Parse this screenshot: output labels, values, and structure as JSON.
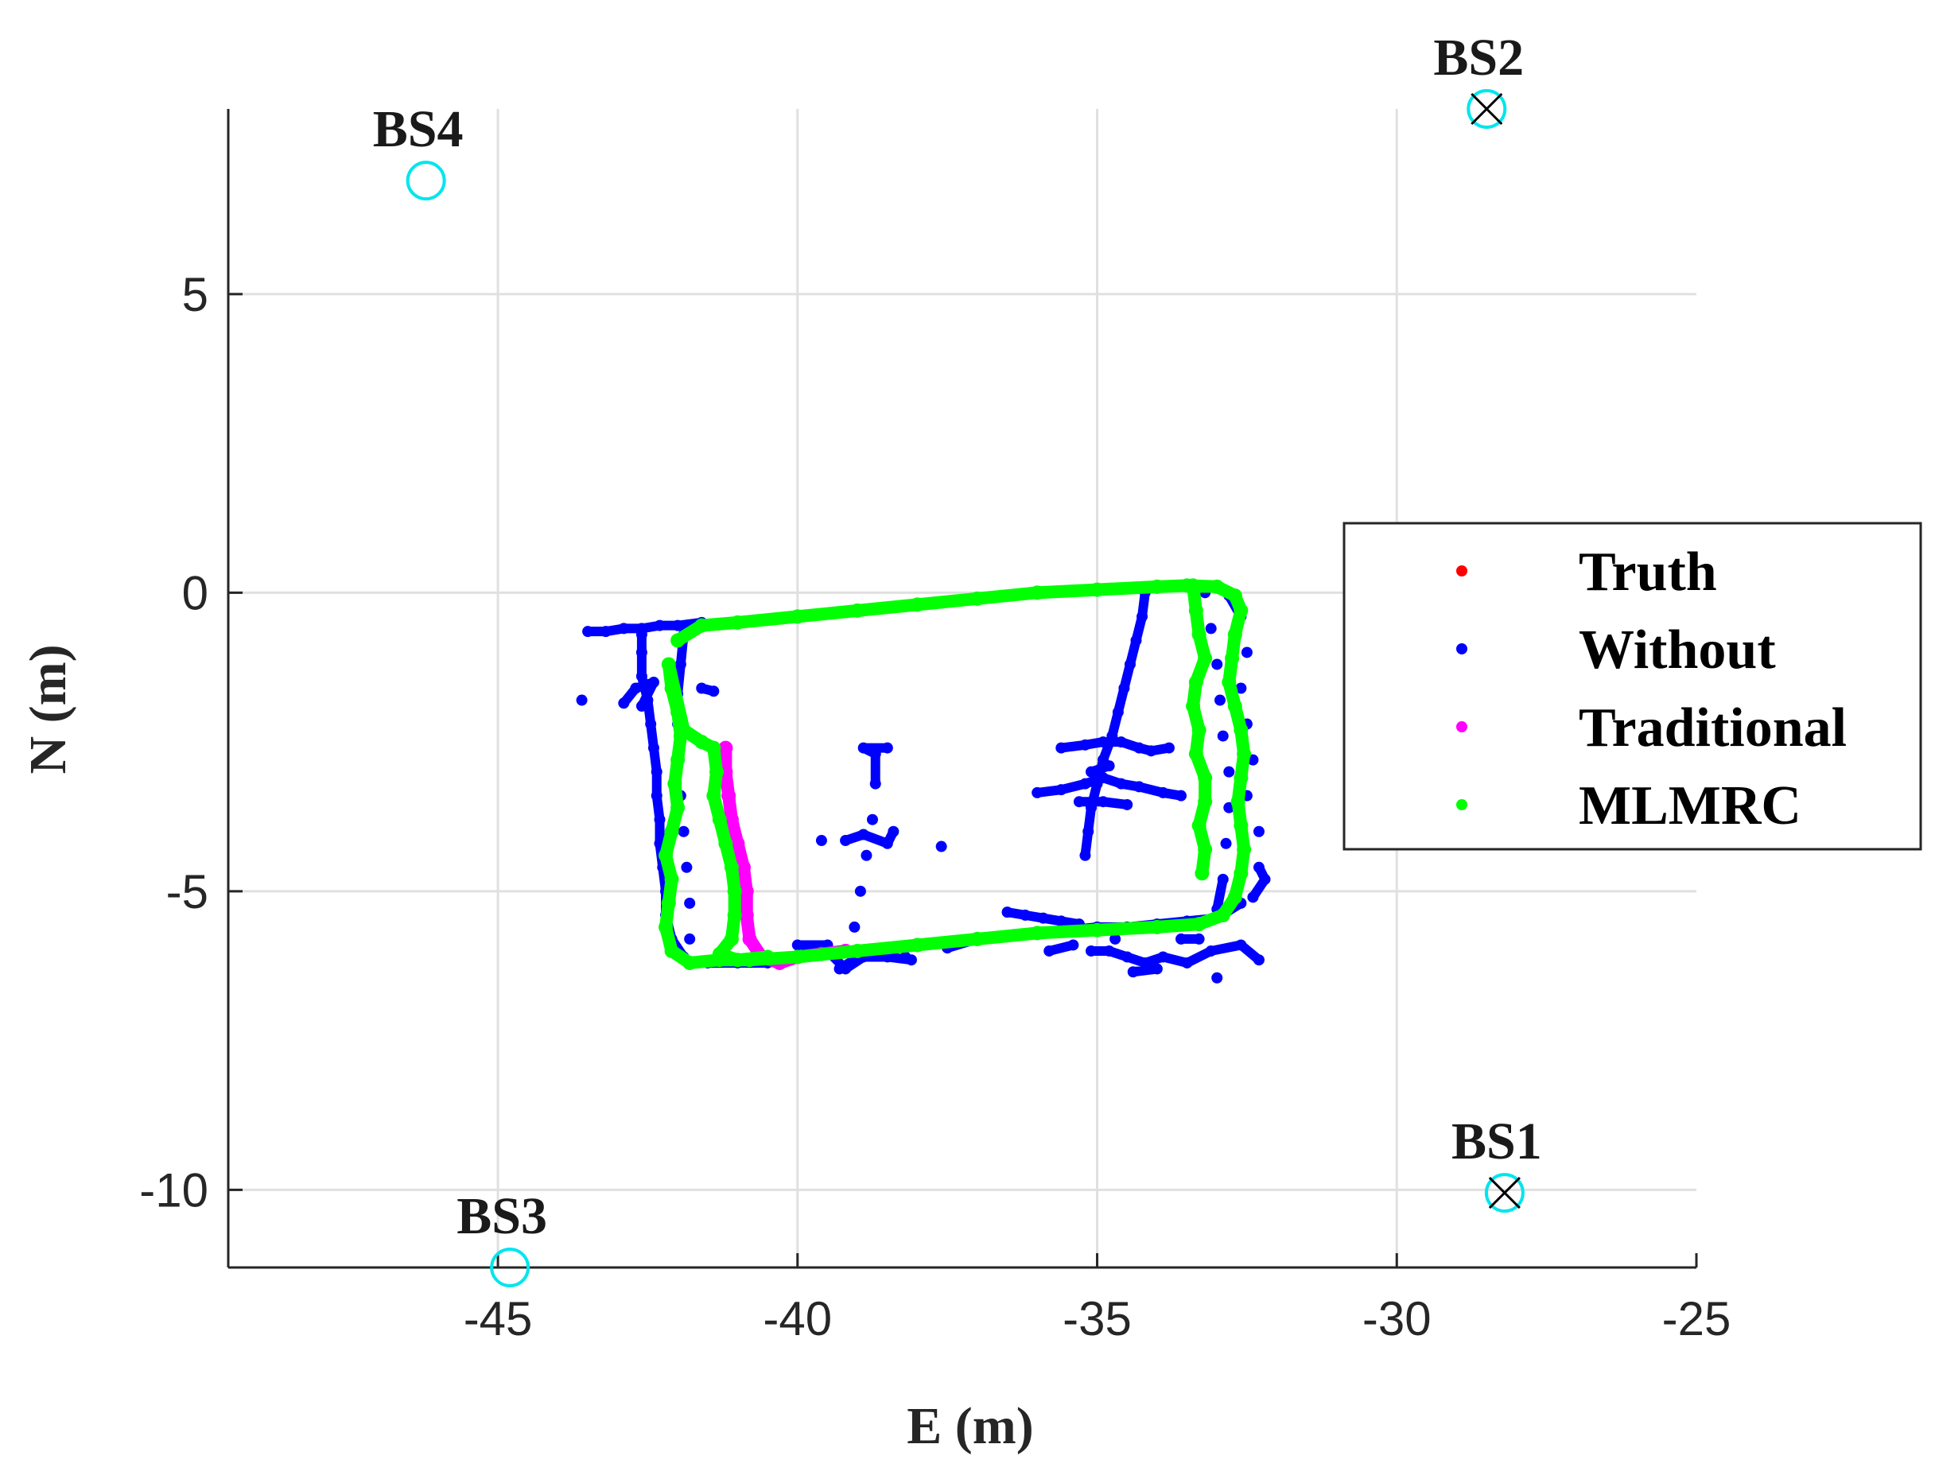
{
  "chart_data": {
    "type": "scatter",
    "xlabel": "E (m)",
    "ylabel": "N (m)",
    "xlim": [
      -49.5,
      -25
    ],
    "ylim": [
      -11.3,
      8.1
    ],
    "xticks": [
      -45,
      -40,
      -35,
      -30,
      -25
    ],
    "xtick_labels": [
      "-45",
      "-40",
      "-35",
      "-30",
      "-25"
    ],
    "yticks": [
      -10,
      -5,
      0,
      5
    ],
    "ytick_labels": [
      "-10",
      "-5",
      "0",
      "5"
    ],
    "grid": true,
    "legend_position": "right",
    "series": [
      {
        "name": "Truth",
        "color": "#ff0000",
        "points": []
      },
      {
        "name": "Without",
        "color": "#0000ff",
        "points": [
          [
            -43.5,
            -0.65
          ],
          [
            -43.2,
            -0.65
          ],
          [
            -42.9,
            -0.6
          ],
          [
            -42.6,
            -0.6
          ],
          [
            -42.3,
            -0.55
          ],
          [
            -42.0,
            -0.55
          ],
          [
            -41.6,
            -0.5
          ],
          [
            -42.6,
            -0.7
          ],
          [
            -42.6,
            -1.0
          ],
          [
            -42.6,
            -1.4
          ],
          [
            -42.5,
            -1.8
          ],
          [
            -42.45,
            -2.2
          ],
          [
            -42.4,
            -2.6
          ],
          [
            -42.35,
            -3.0
          ],
          [
            -42.35,
            -3.4
          ],
          [
            -42.3,
            -3.8
          ],
          [
            -42.3,
            -4.2
          ],
          [
            -42.25,
            -4.6
          ],
          [
            -42.2,
            -5.0
          ],
          [
            -42.2,
            -5.4
          ],
          [
            -42.1,
            -5.8
          ],
          [
            -41.9,
            -6.1
          ],
          [
            -41.9,
            -0.7
          ],
          [
            -41.95,
            -1.2
          ],
          [
            -42.0,
            -1.7
          ],
          [
            -42.0,
            -2.2
          ],
          [
            -42.0,
            -2.8
          ],
          [
            -41.95,
            -3.4
          ],
          [
            -41.9,
            -4.0
          ],
          [
            -41.85,
            -4.6
          ],
          [
            -41.8,
            -5.2
          ],
          [
            -41.8,
            -5.8
          ],
          [
            -43.6,
            -1.8
          ],
          [
            -42.9,
            -1.85
          ],
          [
            -42.7,
            -1.6
          ],
          [
            -42.4,
            -1.5
          ],
          [
            -42.6,
            -1.9
          ],
          [
            -41.6,
            -1.6
          ],
          [
            -41.4,
            -1.65
          ],
          [
            -41.5,
            -6.2
          ],
          [
            -41.0,
            -6.2
          ],
          [
            -40.5,
            -6.2
          ],
          [
            -40.0,
            -6.1
          ],
          [
            -39.5,
            -6.0
          ],
          [
            -39.2,
            -6.3
          ],
          [
            -38.9,
            -6.1
          ],
          [
            -38.5,
            -6.1
          ],
          [
            -38.1,
            -6.15
          ],
          [
            -37.5,
            -5.95
          ],
          [
            -37.0,
            -5.8
          ],
          [
            -36.5,
            -5.75
          ],
          [
            -36.0,
            -5.7
          ],
          [
            -35.5,
            -5.65
          ],
          [
            -35.0,
            -5.6
          ],
          [
            -34.5,
            -5.6
          ],
          [
            -34.0,
            -5.55
          ],
          [
            -33.5,
            -5.5
          ],
          [
            -33.0,
            -5.45
          ],
          [
            -32.6,
            -5.2
          ],
          [
            -40.0,
            -5.9
          ],
          [
            -39.5,
            -5.9
          ],
          [
            -38.9,
            -6.05
          ],
          [
            -39.3,
            -6.3
          ],
          [
            -39.05,
            -5.6
          ],
          [
            -38.95,
            -5.0
          ],
          [
            -38.85,
            -4.4
          ],
          [
            -38.75,
            -3.8
          ],
          [
            -38.7,
            -3.2
          ],
          [
            -38.7,
            -2.7
          ],
          [
            -38.9,
            -2.6
          ],
          [
            -38.5,
            -2.6
          ],
          [
            -39.2,
            -4.15
          ],
          [
            -38.9,
            -4.05
          ],
          [
            -38.5,
            -4.2
          ],
          [
            -38.4,
            -4.0
          ],
          [
            -37.6,
            -4.25
          ],
          [
            -39.6,
            -4.15
          ],
          [
            -38.2,
            -6.1
          ],
          [
            -34.2,
            0.0
          ],
          [
            -34.25,
            -0.4
          ],
          [
            -34.35,
            -0.8
          ],
          [
            -34.45,
            -1.2
          ],
          [
            -34.55,
            -1.6
          ],
          [
            -34.65,
            -2.0
          ],
          [
            -34.75,
            -2.4
          ],
          [
            -34.9,
            -2.8
          ],
          [
            -35.0,
            -3.2
          ],
          [
            -35.1,
            -3.6
          ],
          [
            -35.15,
            -4.0
          ],
          [
            -35.2,
            -4.4
          ],
          [
            -35.6,
            -2.6
          ],
          [
            -35.2,
            -2.55
          ],
          [
            -34.9,
            -2.5
          ],
          [
            -34.6,
            -2.5
          ],
          [
            -34.3,
            -2.6
          ],
          [
            -34.1,
            -2.65
          ],
          [
            -33.8,
            -2.6
          ],
          [
            -36.0,
            -3.35
          ],
          [
            -35.6,
            -3.3
          ],
          [
            -35.2,
            -3.2
          ],
          [
            -34.9,
            -3.1
          ],
          [
            -34.6,
            -3.2
          ],
          [
            -34.3,
            -3.25
          ],
          [
            -33.9,
            -3.35
          ],
          [
            -33.6,
            -3.4
          ],
          [
            -35.3,
            -3.5
          ],
          [
            -34.9,
            -3.5
          ],
          [
            -34.5,
            -3.55
          ],
          [
            -35.1,
            -3.0
          ],
          [
            -34.8,
            -2.9
          ],
          [
            -35.1,
            -6.0
          ],
          [
            -34.8,
            -6.0
          ],
          [
            -34.5,
            -6.1
          ],
          [
            -34.2,
            -6.2
          ],
          [
            -33.9,
            -6.1
          ],
          [
            -33.5,
            -6.2
          ],
          [
            -33.1,
            -6.0
          ],
          [
            -32.6,
            -5.9
          ],
          [
            -32.3,
            -6.15
          ],
          [
            -33.0,
            -6.45
          ],
          [
            -34.0,
            -6.3
          ],
          [
            -34.4,
            -6.35
          ],
          [
            -35.8,
            -6.0
          ],
          [
            -35.4,
            -5.9
          ],
          [
            -34.7,
            -5.8
          ],
          [
            -33.6,
            -5.8
          ],
          [
            -33.3,
            -5.8
          ],
          [
            -36.5,
            -5.35
          ],
          [
            -36.2,
            -5.4
          ],
          [
            -35.9,
            -5.45
          ],
          [
            -35.6,
            -5.5
          ],
          [
            -35.3,
            -5.55
          ],
          [
            -32.8,
            -0.05
          ],
          [
            -32.6,
            -0.4
          ],
          [
            -32.5,
            -1.0
          ],
          [
            -32.6,
            -1.6
          ],
          [
            -32.5,
            -2.2
          ],
          [
            -32.4,
            -2.8
          ],
          [
            -32.5,
            -3.4
          ],
          [
            -32.3,
            -4.0
          ],
          [
            -32.3,
            -4.6
          ],
          [
            -32.2,
            -4.8
          ],
          [
            -32.4,
            -5.1
          ],
          [
            -33.2,
            0.0
          ],
          [
            -33.1,
            -0.6
          ],
          [
            -33.0,
            -1.2
          ],
          [
            -32.95,
            -1.8
          ],
          [
            -32.9,
            -2.4
          ],
          [
            -32.8,
            -3.0
          ],
          [
            -32.8,
            -3.6
          ],
          [
            -32.85,
            -4.2
          ],
          [
            -32.9,
            -4.8
          ],
          [
            -33.0,
            -5.3
          ]
        ]
      },
      {
        "name": "Traditional",
        "color": "#ff00ff",
        "points": [
          [
            -41.2,
            -2.6
          ],
          [
            -41.2,
            -3.0
          ],
          [
            -41.15,
            -3.4
          ],
          [
            -41.1,
            -3.8
          ],
          [
            -41.0,
            -4.2
          ],
          [
            -40.9,
            -4.6
          ],
          [
            -40.85,
            -5.0
          ],
          [
            -40.85,
            -5.4
          ],
          [
            -40.8,
            -5.8
          ],
          [
            -40.6,
            -6.1
          ],
          [
            -40.3,
            -6.2
          ],
          [
            -40.0,
            -6.1
          ],
          [
            -39.6,
            -6.05
          ],
          [
            -39.2,
            -6.0
          ]
        ]
      },
      {
        "name": "MLMRC",
        "color": "#00ff00",
        "points": [
          [
            -42.0,
            -0.8
          ],
          [
            -41.6,
            -0.55
          ],
          [
            -41.0,
            -0.5
          ],
          [
            -40.0,
            -0.4
          ],
          [
            -39.0,
            -0.3
          ],
          [
            -38.0,
            -0.2
          ],
          [
            -37.0,
            -0.1
          ],
          [
            -36.0,
            0.0
          ],
          [
            -35.0,
            0.05
          ],
          [
            -34.0,
            0.1
          ],
          [
            -33.5,
            0.12
          ],
          [
            -33.0,
            0.1
          ],
          [
            -32.7,
            -0.05
          ],
          [
            -32.6,
            -0.3
          ],
          [
            -32.7,
            -0.7
          ],
          [
            -32.75,
            -1.1
          ],
          [
            -32.8,
            -1.5
          ],
          [
            -32.7,
            -1.9
          ],
          [
            -32.6,
            -2.3
          ],
          [
            -32.55,
            -2.7
          ],
          [
            -32.6,
            -3.1
          ],
          [
            -32.65,
            -3.5
          ],
          [
            -32.6,
            -3.9
          ],
          [
            -32.55,
            -4.3
          ],
          [
            -32.6,
            -4.7
          ],
          [
            -32.7,
            -5.1
          ],
          [
            -32.9,
            -5.4
          ],
          [
            -33.3,
            -5.55
          ],
          [
            -34.0,
            -5.6
          ],
          [
            -35.0,
            -5.65
          ],
          [
            -36.0,
            -5.7
          ],
          [
            -37.0,
            -5.8
          ],
          [
            -38.0,
            -5.9
          ],
          [
            -39.0,
            -6.0
          ],
          [
            -40.0,
            -6.1
          ],
          [
            -40.8,
            -6.15
          ],
          [
            -41.3,
            -6.15
          ],
          [
            -41.8,
            -6.2
          ],
          [
            -42.1,
            -6.0
          ],
          [
            -42.2,
            -5.6
          ],
          [
            -42.15,
            -5.2
          ],
          [
            -42.1,
            -4.8
          ],
          [
            -42.2,
            -4.4
          ],
          [
            -42.1,
            -4.0
          ],
          [
            -42.0,
            -3.6
          ],
          [
            -42.05,
            -3.2
          ],
          [
            -42.0,
            -2.8
          ],
          [
            -41.95,
            -2.4
          ],
          [
            -42.0,
            -2.0
          ],
          [
            -42.1,
            -1.6
          ],
          [
            -42.15,
            -1.2
          ],
          [
            -41.9,
            -2.3
          ],
          [
            -41.6,
            -2.5
          ],
          [
            -41.4,
            -2.6
          ],
          [
            -41.35,
            -3.0
          ],
          [
            -41.4,
            -3.4
          ],
          [
            -41.3,
            -3.8
          ],
          [
            -41.2,
            -4.2
          ],
          [
            -41.1,
            -4.6
          ],
          [
            -41.05,
            -5.0
          ],
          [
            -41.05,
            -5.4
          ],
          [
            -41.1,
            -5.8
          ],
          [
            -41.3,
            -6.05
          ],
          [
            -41.0,
            -6.15
          ],
          [
            -40.5,
            -6.1
          ],
          [
            -33.4,
            0.12
          ],
          [
            -33.35,
            -0.3
          ],
          [
            -33.3,
            -0.7
          ],
          [
            -33.2,
            -1.1
          ],
          [
            -33.35,
            -1.5
          ],
          [
            -33.4,
            -1.9
          ],
          [
            -33.3,
            -2.3
          ],
          [
            -33.35,
            -2.7
          ],
          [
            -33.2,
            -3.1
          ],
          [
            -33.2,
            -3.5
          ],
          [
            -33.3,
            -3.9
          ],
          [
            -33.2,
            -4.3
          ],
          [
            -33.25,
            -4.7
          ]
        ]
      }
    ],
    "base_stations": [
      {
        "name": "BS1",
        "x": -28.2,
        "y": -10.05,
        "marker": "circle-x"
      },
      {
        "name": "BS2",
        "x": -28.5,
        "y": 8.1,
        "marker": "circle-x"
      },
      {
        "name": "BS3",
        "x": -44.8,
        "y": -11.3,
        "marker": "circle"
      },
      {
        "name": "BS4",
        "x": -46.2,
        "y": 6.9,
        "marker": "circle"
      }
    ],
    "bs_circle_color": "#00e5ee"
  }
}
